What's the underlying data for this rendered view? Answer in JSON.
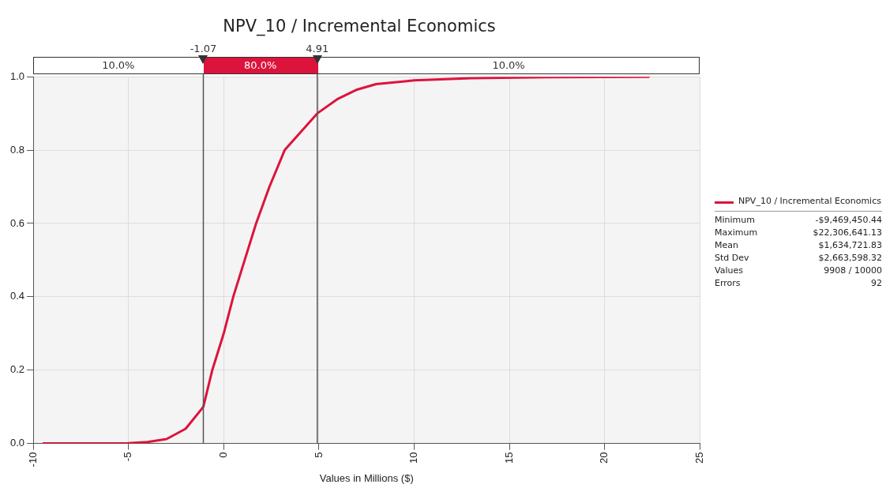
{
  "chart_data": {
    "type": "line",
    "title": "NPV_10 / Incremental Economics",
    "xlabel": "Values in Millions ($)",
    "xlim": [
      -10,
      25
    ],
    "xticks": [
      -10,
      -5,
      0,
      5,
      10,
      15,
      20,
      25
    ],
    "ylim": [
      0,
      1
    ],
    "yticks": [
      {
        "value": 0,
        "label": "0.0"
      },
      {
        "value": 0.2,
        "label": "0.2"
      },
      {
        "value": 0.4,
        "label": "0.4"
      },
      {
        "value": 0.6,
        "label": "0.6"
      },
      {
        "value": 0.8,
        "label": "0.8"
      },
      {
        "value": 1,
        "label": "1.0"
      }
    ],
    "series": [
      {
        "name": "NPV_10 / Incremental Economics",
        "color": "#dc143c",
        "x": [
          -9.47,
          -5,
          -4,
          -3,
          -2,
          -1.07,
          -0.6,
          0,
          0.5,
          1.1,
          1.7,
          2.4,
          3.2,
          4.91,
          6,
          7,
          8,
          10,
          13,
          17,
          22.31
        ],
        "values": [
          0,
          0.001,
          0.004,
          0.012,
          0.04,
          0.1,
          0.2,
          0.3,
          0.4,
          0.5,
          0.6,
          0.7,
          0.8,
          0.9,
          0.94,
          0.965,
          0.98,
          0.99,
          0.996,
          0.999,
          1
        ]
      }
    ],
    "ref_lines": [
      {
        "axis": "x",
        "value": -1.07,
        "label": "-1.07",
        "color": "#555555"
      },
      {
        "axis": "x",
        "value": 4.91,
        "label": "4.91",
        "color": "#555555"
      }
    ],
    "annotations": [
      "10.0%",
      "80.0%",
      "10.0%",
      "Minimum",
      "-$9,469,450.44",
      "Maximum",
      "$22,306,641.13",
      "Mean",
      "$1,634,721.83",
      "Std Dev",
      "$2,663,598.32",
      "Values",
      "9908 / 10000",
      "Errors",
      "92"
    ],
    "grid": true,
    "legend": "right",
    "marker": "none",
    "line_style": "solid"
  }
}
